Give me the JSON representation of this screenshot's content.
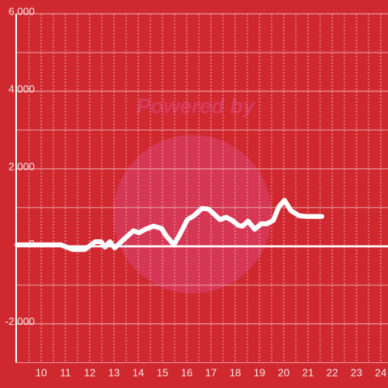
{
  "chart_data": {
    "type": "line",
    "watermark": "Powered by",
    "x": [
      9.0,
      10.8,
      11.3,
      11.8,
      12.23,
      12.47,
      12.63,
      12.83,
      13.03,
      13.3,
      13.8,
      14.03,
      14.3,
      14.63,
      14.97,
      15.13,
      15.47,
      15.7,
      16.03,
      16.3,
      16.63,
      16.9,
      17.13,
      17.37,
      17.63,
      17.87,
      18.13,
      18.3,
      18.53,
      18.8,
      19.07,
      19.3,
      19.57,
      19.8,
      20.03,
      20.3,
      20.63,
      20.97,
      21.57
    ],
    "values": [
      40,
      40,
      -80,
      -80,
      120,
      120,
      -20,
      120,
      -40,
      120,
      400,
      350,
      440,
      520,
      460,
      290,
      40,
      290,
      690,
      790,
      980,
      960,
      830,
      690,
      750,
      670,
      540,
      520,
      650,
      440,
      580,
      580,
      670,
      1020,
      1190,
      920,
      790,
      770,
      770
    ],
    "color": "#ffffff",
    "xlim": [
      9,
      24.3
    ],
    "xticks": [
      10,
      11,
      12,
      13,
      14,
      15,
      16,
      17,
      18,
      19,
      20,
      21,
      22,
      23,
      24
    ],
    "xminor": [
      9.5,
      10.5,
      11.5,
      12.5,
      13.5,
      14.5,
      15.5,
      16.5,
      17.5,
      18.5,
      19.5,
      20.5,
      21.5,
      22.5,
      23.5
    ],
    "ylim": [
      -3000,
      6000
    ],
    "yticks": [
      {
        "value": -2000,
        "label": "-2,000"
      },
      0,
      {
        "value": 2000,
        "label": "2,000"
      },
      {
        "value": 4000,
        "label": "4,000"
      },
      {
        "value": 6000,
        "label": "6,000"
      }
    ],
    "yminor": [
      -3000,
      -1000,
      1000,
      3000,
      5000
    ],
    "grid": true
  }
}
